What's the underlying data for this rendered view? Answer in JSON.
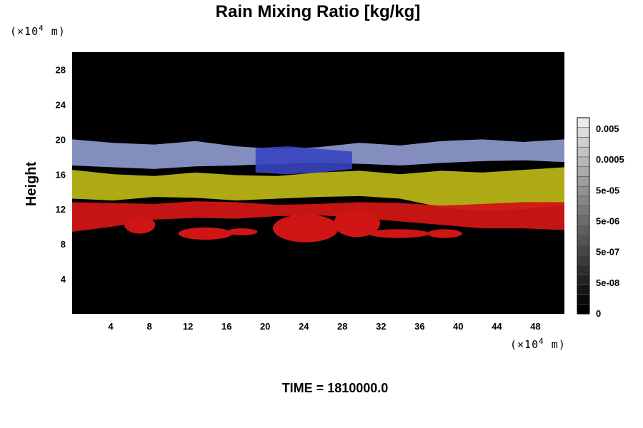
{
  "chart_data": {
    "type": "heatmap",
    "title": "Rain Mixing Ratio [kg/kg]",
    "ylabel": "Height",
    "x_unit_prefix": "(×10",
    "x_unit_exp": "4",
    "x_unit_suffix": " m)",
    "y_unit_prefix": "(×10",
    "y_unit_exp": "4",
    "y_unit_suffix": " m)",
    "xlim": [
      0,
      51
    ],
    "ylim": [
      0,
      30
    ],
    "x_ticks": [
      4,
      8,
      12,
      16,
      20,
      24,
      28,
      32,
      36,
      40,
      44,
      48
    ],
    "y_ticks": [
      4,
      8,
      12,
      16,
      20,
      24,
      28
    ],
    "footer": "TIME = 1810000.0",
    "colorbar": {
      "labels": [
        "0.005",
        "0.0005",
        "5e-05",
        "5e-06",
        "5e-07",
        "5e-08",
        "0"
      ],
      "colors": [
        "#ececec",
        "#dcdcdc",
        "#cfcfcf",
        "#c3c3c3",
        "#b6b6b6",
        "#aaaaaa",
        "#9d9d9d",
        "#919191",
        "#858585",
        "#787878",
        "#6c6c6c",
        "#5f5f5f",
        "#535353",
        "#474747",
        "#3a3a3a",
        "#2e2e2e",
        "#222222",
        "#151515",
        "#090909",
        "#000000"
      ]
    },
    "layers": [
      {
        "name": "blue-grey",
        "color": "#8a95c8",
        "ybot": [
          17.0,
          16.8,
          16.6,
          16.9,
          17.0,
          17.2,
          17.3,
          17.2,
          17.0,
          17.3,
          17.5,
          17.6,
          17.4
        ],
        "ytop": [
          20.0,
          19.6,
          19.4,
          19.8,
          19.2,
          18.9,
          19.1,
          19.6,
          19.3,
          19.8,
          20.0,
          19.7,
          20.0
        ]
      },
      {
        "name": "blue-core",
        "color": "#3a44c0",
        "ybot": [
          16.2,
          16.0,
          16.2,
          16.6
        ],
        "ytop": [
          19.0,
          19.2,
          18.9,
          18.6
        ],
        "xrange": [
          19,
          29
        ]
      },
      {
        "name": "yellow",
        "color": "#b7b316",
        "ybot": [
          13.2,
          13.0,
          13.4,
          13.3,
          13.0,
          13.2,
          13.4,
          13.5,
          13.2,
          12.2,
          11.8,
          12.0,
          12.4
        ],
        "ytop": [
          16.5,
          16.0,
          15.8,
          16.2,
          15.9,
          15.8,
          16.2,
          16.4,
          16.0,
          16.4,
          16.2,
          16.5,
          16.8
        ]
      },
      {
        "name": "red",
        "color": "#d01515",
        "ybot": [
          9.4,
          10.0,
          10.8,
          11.0,
          10.9,
          11.2,
          11.3,
          11.0,
          10.6,
          10.2,
          9.8,
          9.8,
          9.6
        ],
        "ytop": [
          12.8,
          12.7,
          12.6,
          12.9,
          12.8,
          12.5,
          12.6,
          12.8,
          12.7,
          12.4,
          12.6,
          12.8,
          12.8
        ]
      },
      {
        "name": "red-patches",
        "color": "#d01515",
        "patches": [
          [
            7.0,
            10.2,
            1.6,
            1.0
          ],
          [
            13.8,
            9.2,
            2.8,
            0.7
          ],
          [
            17.6,
            9.4,
            1.6,
            0.4
          ],
          [
            24.2,
            9.8,
            3.4,
            1.6
          ],
          [
            29.5,
            10.4,
            2.4,
            1.6
          ],
          [
            33.8,
            9.2,
            3.2,
            0.5
          ],
          [
            38.6,
            9.2,
            1.8,
            0.5
          ]
        ]
      }
    ]
  }
}
